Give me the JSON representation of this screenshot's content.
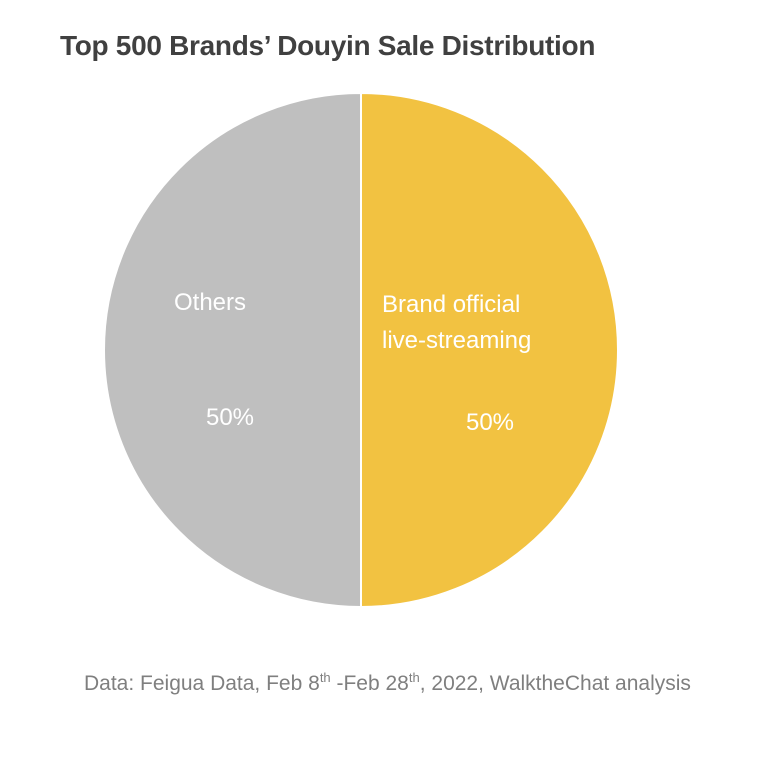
{
  "chart_data": {
    "type": "pie",
    "title": "Top 500 Brands’ Douyin Sale Distribution",
    "slices": [
      {
        "label_lines": [
          "Brand official",
          "live-streaming"
        ],
        "value": 50,
        "value_label": "50%",
        "color": "#F2C241"
      },
      {
        "label_lines": [
          "Others"
        ],
        "value": 50,
        "value_label": "50%",
        "color": "#BFBFBF"
      }
    ]
  },
  "source": {
    "part1": "Data: Feigua Data, Feb 8",
    "sup1": "th",
    "part2": " -Feb 28",
    "sup2": "th",
    "part3": ", 2022, WalktheChat analysis"
  }
}
